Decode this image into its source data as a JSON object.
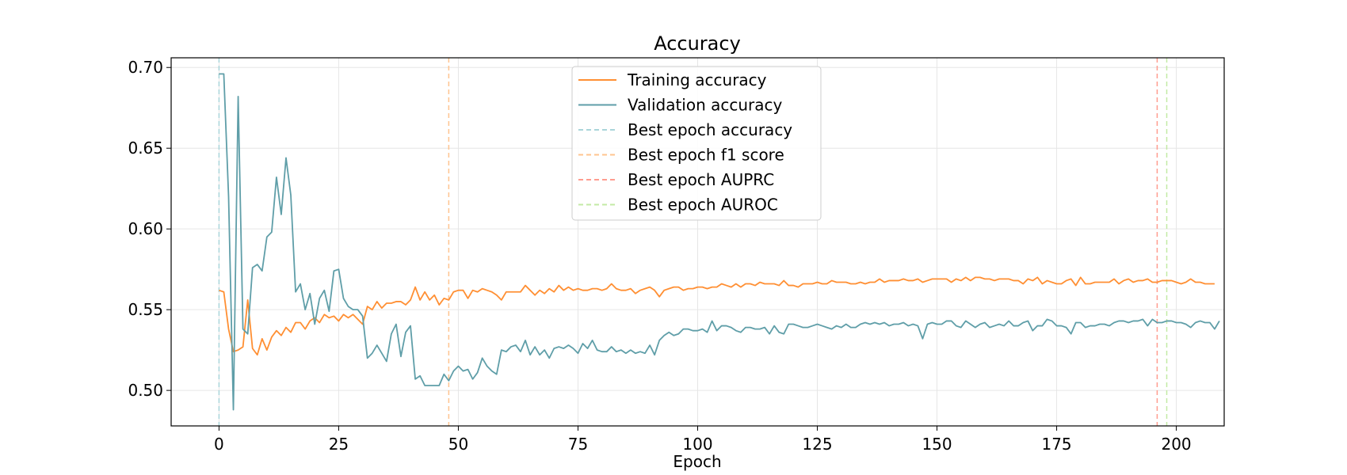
{
  "chart_data": {
    "type": "line",
    "title": "Accuracy",
    "xlabel": "Epoch",
    "ylabel": "",
    "xlim": [
      -10,
      210
    ],
    "ylim": [
      0.478,
      0.706
    ],
    "xticks": [
      0,
      25,
      50,
      75,
      100,
      125,
      150,
      175,
      200
    ],
    "xtick_labels": [
      "0",
      "25",
      "50",
      "75",
      "100",
      "125",
      "150",
      "175",
      "200"
    ],
    "yticks": [
      0.5,
      0.55,
      0.6,
      0.65,
      0.7
    ],
    "ytick_labels": [
      "0.50",
      "0.55",
      "0.60",
      "0.65",
      "0.70"
    ],
    "grid": true,
    "legend_position": "top-center",
    "series": [
      {
        "name": "Training accuracy",
        "color": "#ff8f33",
        "style": "solid",
        "x_start": 0,
        "values": [
          0.562,
          0.561,
          0.538,
          0.524,
          0.525,
          0.527,
          0.556,
          0.526,
          0.522,
          0.532,
          0.525,
          0.533,
          0.537,
          0.534,
          0.539,
          0.536,
          0.542,
          0.542,
          0.538,
          0.543,
          0.545,
          0.542,
          0.547,
          0.545,
          0.546,
          0.543,
          0.547,
          0.545,
          0.547,
          0.544,
          0.541,
          0.552,
          0.55,
          0.555,
          0.551,
          0.554,
          0.554,
          0.555,
          0.555,
          0.553,
          0.556,
          0.564,
          0.556,
          0.561,
          0.556,
          0.559,
          0.553,
          0.557,
          0.556,
          0.561,
          0.562,
          0.562,
          0.557,
          0.562,
          0.561,
          0.563,
          0.562,
          0.561,
          0.559,
          0.556,
          0.561,
          0.561,
          0.561,
          0.561,
          0.565,
          0.562,
          0.559,
          0.562,
          0.56,
          0.563,
          0.561,
          0.565,
          0.562,
          0.564,
          0.562,
          0.563,
          0.562,
          0.562,
          0.563,
          0.563,
          0.562,
          0.563,
          0.566,
          0.563,
          0.562,
          0.562,
          0.563,
          0.56,
          0.562,
          0.563,
          0.564,
          0.562,
          0.558,
          0.562,
          0.563,
          0.564,
          0.564,
          0.562,
          0.563,
          0.563,
          0.564,
          0.564,
          0.563,
          0.564,
          0.564,
          0.566,
          0.565,
          0.564,
          0.566,
          0.564,
          0.566,
          0.566,
          0.565,
          0.567,
          0.566,
          0.566,
          0.566,
          0.565,
          0.568,
          0.565,
          0.565,
          0.564,
          0.566,
          0.566,
          0.566,
          0.567,
          0.566,
          0.566,
          0.568,
          0.567,
          0.567,
          0.567,
          0.566,
          0.566,
          0.567,
          0.566,
          0.567,
          0.567,
          0.569,
          0.567,
          0.568,
          0.568,
          0.568,
          0.569,
          0.568,
          0.568,
          0.569,
          0.567,
          0.568,
          0.569,
          0.569,
          0.569,
          0.569,
          0.567,
          0.569,
          0.568,
          0.57,
          0.568,
          0.57,
          0.57,
          0.569,
          0.569,
          0.568,
          0.569,
          0.569,
          0.569,
          0.568,
          0.568,
          0.566,
          0.569,
          0.568,
          0.57,
          0.566,
          0.568,
          0.567,
          0.566,
          0.566,
          0.568,
          0.569,
          0.565,
          0.57,
          0.566,
          0.566,
          0.567,
          0.567,
          0.567,
          0.567,
          0.569,
          0.566,
          0.568,
          0.569,
          0.567,
          0.568,
          0.568,
          0.569,
          0.567,
          0.567,
          0.568,
          0.568,
          0.568,
          0.567,
          0.566,
          0.567,
          0.569,
          0.567,
          0.567,
          0.566,
          0.566,
          0.566
        ]
      },
      {
        "name": "Validation accuracy",
        "color": "#5f9ea8",
        "style": "solid",
        "x_start": 0,
        "values": [
          0.696,
          0.696,
          0.62,
          0.488,
          0.682,
          0.538,
          0.535,
          0.576,
          0.578,
          0.574,
          0.595,
          0.598,
          0.632,
          0.609,
          0.644,
          0.621,
          0.561,
          0.566,
          0.55,
          0.56,
          0.541,
          0.557,
          0.562,
          0.549,
          0.574,
          0.575,
          0.557,
          0.552,
          0.55,
          0.55,
          0.546,
          0.52,
          0.523,
          0.528,
          0.523,
          0.518,
          0.535,
          0.541,
          0.521,
          0.536,
          0.54,
          0.507,
          0.509,
          0.503,
          0.503,
          0.503,
          0.503,
          0.51,
          0.506,
          0.512,
          0.515,
          0.512,
          0.513,
          0.507,
          0.511,
          0.52,
          0.515,
          0.512,
          0.51,
          0.525,
          0.524,
          0.527,
          0.528,
          0.524,
          0.531,
          0.522,
          0.527,
          0.522,
          0.525,
          0.52,
          0.526,
          0.527,
          0.526,
          0.528,
          0.526,
          0.523,
          0.529,
          0.526,
          0.531,
          0.525,
          0.524,
          0.524,
          0.527,
          0.524,
          0.525,
          0.523,
          0.525,
          0.523,
          0.524,
          0.523,
          0.528,
          0.522,
          0.531,
          0.534,
          0.536,
          0.534,
          0.535,
          0.538,
          0.538,
          0.537,
          0.537,
          0.538,
          0.536,
          0.543,
          0.537,
          0.54,
          0.54,
          0.539,
          0.537,
          0.536,
          0.539,
          0.539,
          0.538,
          0.538,
          0.539,
          0.535,
          0.54,
          0.536,
          0.535,
          0.541,
          0.541,
          0.54,
          0.539,
          0.539,
          0.54,
          0.541,
          0.54,
          0.539,
          0.538,
          0.54,
          0.539,
          0.541,
          0.539,
          0.539,
          0.541,
          0.542,
          0.541,
          0.542,
          0.541,
          0.542,
          0.54,
          0.541,
          0.541,
          0.542,
          0.54,
          0.541,
          0.54,
          0.532,
          0.541,
          0.542,
          0.541,
          0.541,
          0.543,
          0.543,
          0.54,
          0.539,
          0.543,
          0.541,
          0.539,
          0.541,
          0.542,
          0.539,
          0.54,
          0.541,
          0.54,
          0.543,
          0.54,
          0.54,
          0.542,
          0.543,
          0.537,
          0.54,
          0.54,
          0.544,
          0.543,
          0.54,
          0.54,
          0.539,
          0.535,
          0.542,
          0.542,
          0.539,
          0.54,
          0.54,
          0.541,
          0.541,
          0.54,
          0.542,
          0.543,
          0.543,
          0.542,
          0.543,
          0.543,
          0.544,
          0.54,
          0.544,
          0.542,
          0.542,
          0.543,
          0.543,
          0.542,
          0.542,
          0.541,
          0.539,
          0.542,
          0.543,
          0.542,
          0.542,
          0.538,
          0.543
        ]
      },
      {
        "name": "Best epoch accuracy",
        "color": "#a9d5da",
        "style": "dashed",
        "vline_x": 0
      },
      {
        "name": "Best epoch f1 score",
        "color": "#ffc48f",
        "style": "dashed",
        "vline_x": 48
      },
      {
        "name": "Best epoch AUPRC",
        "color": "#ff9c8f",
        "style": "dashed",
        "vline_x": 196
      },
      {
        "name": "Best epoch AUROC",
        "color": "#c3eaa5",
        "style": "dashed",
        "vline_x": 198
      }
    ]
  }
}
